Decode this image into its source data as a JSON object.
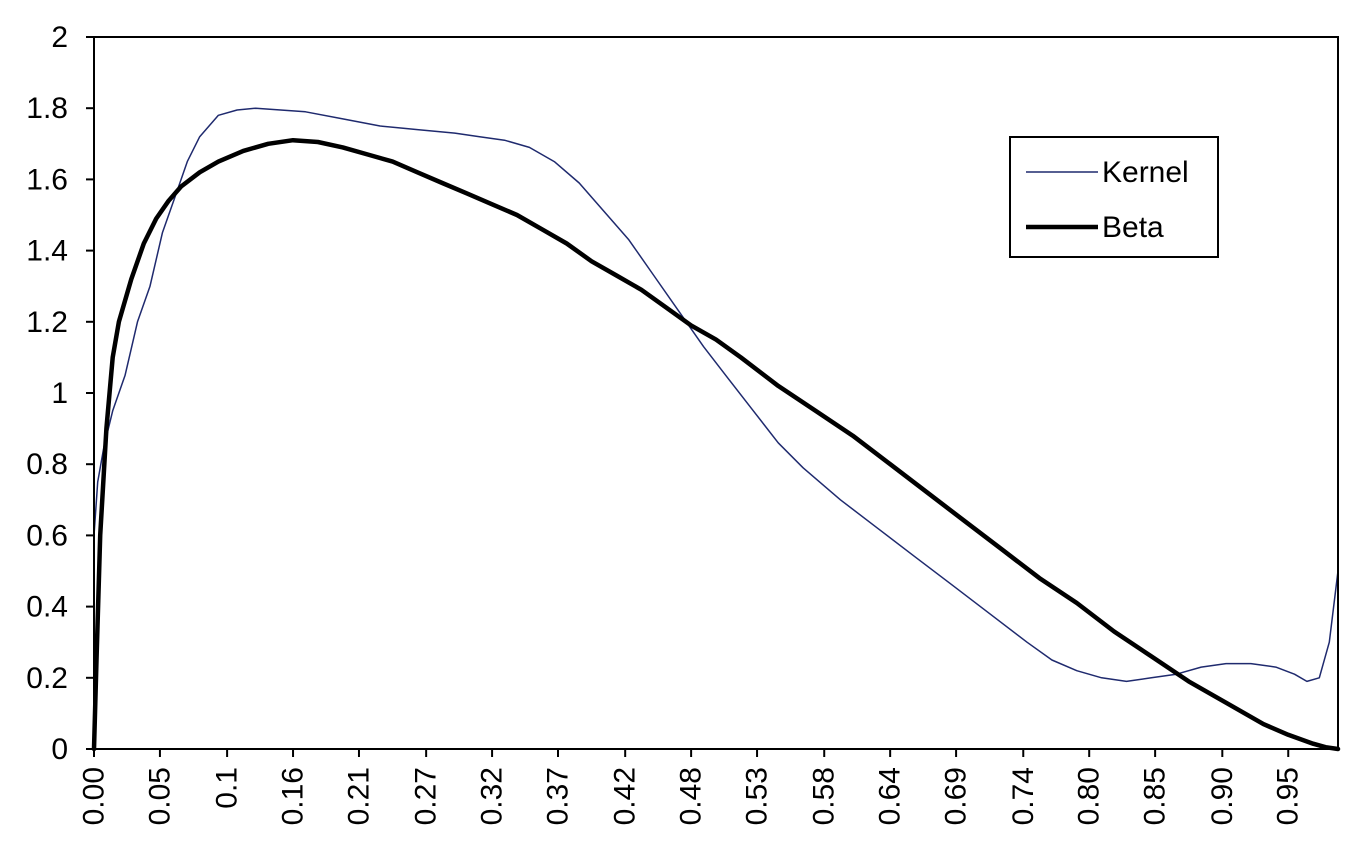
{
  "chart_data": {
    "type": "line",
    "title": "",
    "xlabel": "",
    "ylabel": "",
    "ylim": [
      0,
      2
    ],
    "yticks": [
      "0",
      "0.2",
      "0.4",
      "0.6",
      "0.8",
      "1",
      "1.2",
      "1.4",
      "1.6",
      "1.8",
      "2"
    ],
    "grid": false,
    "legend_position": "top-right",
    "x_tick_labels": [
      "0.00",
      "0.05",
      "0.1",
      "0.16",
      "0.21",
      "0.27",
      "0.32",
      "0.37",
      "0.42",
      "0.48",
      "0.53",
      "0.58",
      "0.64",
      "0.69",
      "0.74",
      "0.80",
      "0.85",
      "0.90",
      "0.95"
    ],
    "x_tick_values": [
      0.0,
      0.053,
      0.107,
      0.16,
      0.213,
      0.267,
      0.32,
      0.373,
      0.427,
      0.48,
      0.533,
      0.587,
      0.64,
      0.693,
      0.747,
      0.8,
      0.853,
      0.907,
      0.96
    ],
    "xlim": [
      0,
      1
    ],
    "series": [
      {
        "name": "Kernel",
        "color": "#1f2a6e",
        "stroke": "thin",
        "x": [
          0.0,
          0.003,
          0.008,
          0.015,
          0.025,
          0.035,
          0.045,
          0.055,
          0.065,
          0.075,
          0.085,
          0.1,
          0.115,
          0.13,
          0.15,
          0.17,
          0.2,
          0.23,
          0.26,
          0.29,
          0.31,
          0.33,
          0.35,
          0.37,
          0.39,
          0.41,
          0.43,
          0.45,
          0.47,
          0.49,
          0.51,
          0.53,
          0.55,
          0.57,
          0.6,
          0.63,
          0.66,
          0.69,
          0.72,
          0.75,
          0.77,
          0.79,
          0.81,
          0.83,
          0.85,
          0.87,
          0.89,
          0.91,
          0.93,
          0.95,
          0.965,
          0.975,
          0.985,
          0.993,
          1.0
        ],
        "y": [
          0.6,
          0.75,
          0.85,
          0.95,
          1.05,
          1.2,
          1.3,
          1.45,
          1.55,
          1.65,
          1.72,
          1.78,
          1.795,
          1.8,
          1.795,
          1.79,
          1.77,
          1.75,
          1.74,
          1.73,
          1.72,
          1.71,
          1.69,
          1.65,
          1.59,
          1.51,
          1.43,
          1.33,
          1.23,
          1.13,
          1.04,
          0.95,
          0.86,
          0.79,
          0.7,
          0.62,
          0.54,
          0.46,
          0.38,
          0.3,
          0.25,
          0.22,
          0.2,
          0.19,
          0.2,
          0.21,
          0.23,
          0.24,
          0.24,
          0.23,
          0.21,
          0.19,
          0.2,
          0.3,
          0.5
        ]
      },
      {
        "name": "Beta",
        "color": "#000000",
        "stroke": "thick",
        "x": [
          0.0,
          0.002,
          0.005,
          0.01,
          0.015,
          0.02,
          0.03,
          0.04,
          0.05,
          0.06,
          0.07,
          0.085,
          0.1,
          0.12,
          0.14,
          0.16,
          0.18,
          0.2,
          0.22,
          0.24,
          0.26,
          0.28,
          0.3,
          0.32,
          0.34,
          0.36,
          0.38,
          0.4,
          0.42,
          0.44,
          0.46,
          0.48,
          0.5,
          0.52,
          0.55,
          0.58,
          0.61,
          0.64,
          0.67,
          0.7,
          0.73,
          0.76,
          0.79,
          0.82,
          0.85,
          0.88,
          0.91,
          0.94,
          0.96,
          0.98,
          0.99,
          1.0
        ],
        "y": [
          0.0,
          0.25,
          0.6,
          0.9,
          1.1,
          1.2,
          1.32,
          1.42,
          1.49,
          1.54,
          1.58,
          1.62,
          1.65,
          1.68,
          1.7,
          1.71,
          1.705,
          1.69,
          1.67,
          1.65,
          1.62,
          1.59,
          1.56,
          1.53,
          1.5,
          1.46,
          1.42,
          1.37,
          1.33,
          1.29,
          1.24,
          1.19,
          1.15,
          1.1,
          1.02,
          0.95,
          0.88,
          0.8,
          0.72,
          0.64,
          0.56,
          0.48,
          0.41,
          0.33,
          0.26,
          0.19,
          0.13,
          0.07,
          0.04,
          0.015,
          0.005,
          0.0
        ]
      }
    ]
  }
}
